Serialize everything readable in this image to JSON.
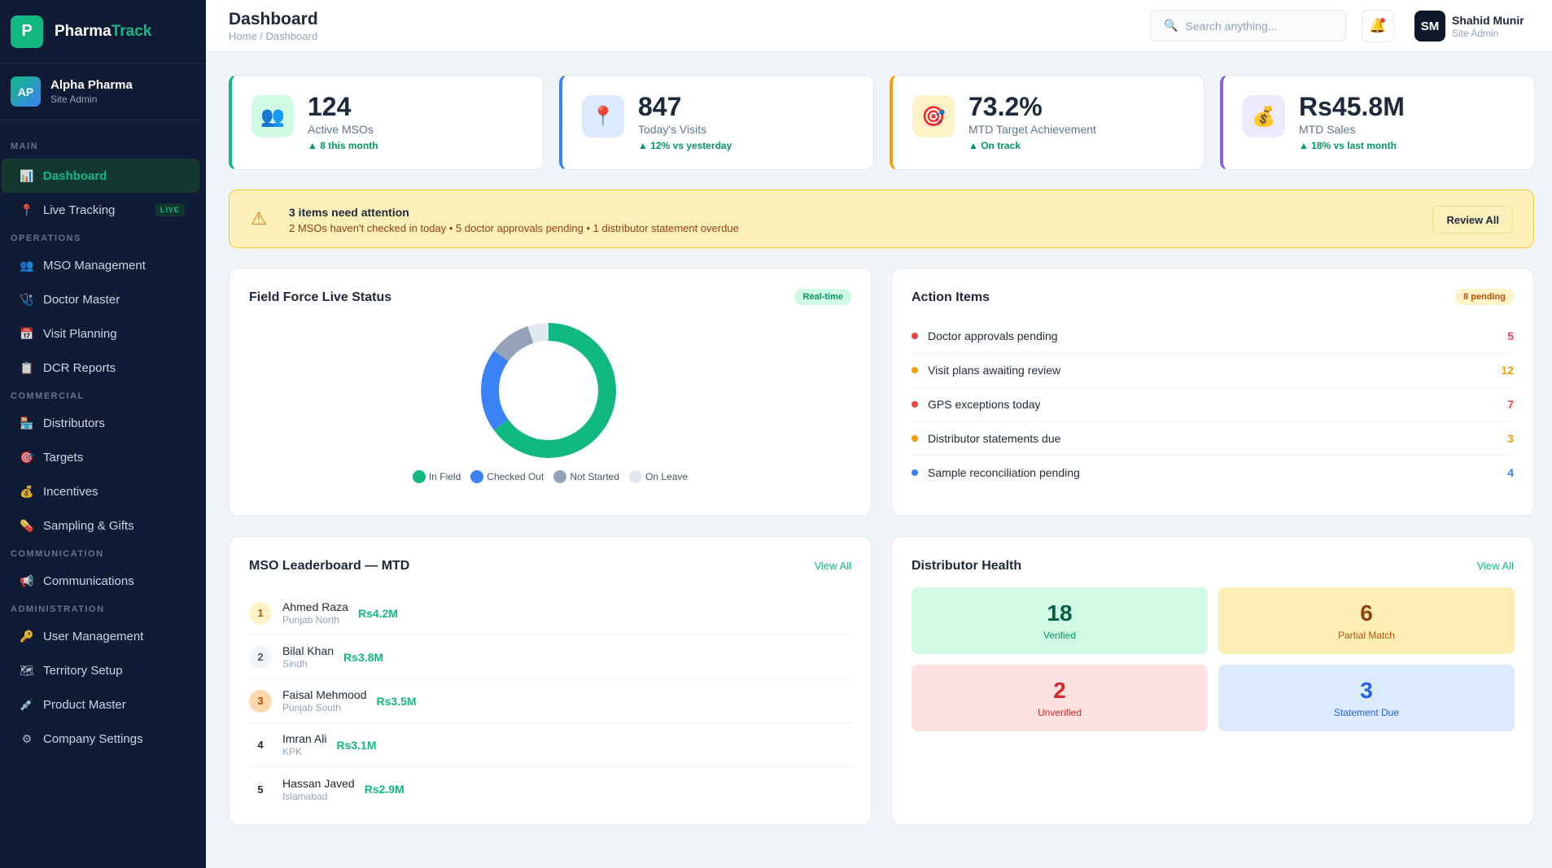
{
  "brand": {
    "logo_letter": "P",
    "name_main": "Pharma",
    "name_accent": "Track"
  },
  "org": {
    "initials": "AP",
    "name": "Alpha Pharma",
    "role": "Site Admin"
  },
  "sidebar": {
    "sections": {
      "main": "MAIN",
      "operations": "OPERATIONS",
      "commercial": "COMMERCIAL",
      "communication": "COMMUNICATION",
      "administration": "ADMINISTRATION"
    },
    "items": {
      "dashboard": "Dashboard",
      "live_tracking": "Live Tracking",
      "live_badge": "LIVE",
      "mso_management": "MSO Management",
      "doctor_master": "Doctor Master",
      "visit_planning": "Visit Planning",
      "dcr_reports": "DCR Reports",
      "distributors": "Distributors",
      "targets": "Targets",
      "incentives": "Incentives",
      "sampling_gifts": "Sampling & Gifts",
      "communications": "Communications",
      "user_management": "User Management",
      "territory_setup": "Territory Setup",
      "product_master": "Product Master",
      "company_settings": "Company Settings"
    }
  },
  "header": {
    "title": "Dashboard",
    "breadcrumb": "Home / Dashboard",
    "search_placeholder": "Search anything...",
    "user": {
      "initials": "SM",
      "name": "Shahid Munir",
      "role": "Site Admin"
    }
  },
  "stats": [
    {
      "value": "124",
      "label": "Active MSOs",
      "trend": "▲ 8 this month",
      "icon": "users-icon",
      "accent": "#10b981"
    },
    {
      "value": "847",
      "label": "Today's Visits",
      "trend": "▲ 12% vs yesterday",
      "icon": "pin-icon",
      "accent": "#3b82f6"
    },
    {
      "value": "73.2%",
      "label": "MTD Target Achievement",
      "trend": "▲ On track",
      "icon": "target-icon",
      "accent": "#f59e0b"
    },
    {
      "value": "Rs45.8M",
      "label": "MTD Sales",
      "trend": "▲ 18% vs last month",
      "icon": "money-bag-icon",
      "accent": "#8b5cf6"
    }
  ],
  "alert": {
    "title": "3 items need attention",
    "description": "2 MSOs haven't checked in today • 5 doctor approvals pending • 1 distributor statement overdue",
    "button": "Review All"
  },
  "field_force": {
    "title": "Field Force Live Status",
    "badge": "Real-time",
    "chart_data": {
      "type": "pie",
      "categories": [
        "In Field",
        "Checked Out",
        "Not Started",
        "On Leave"
      ],
      "values": [
        0.65,
        0.2,
        0.1,
        0.05
      ],
      "colors": [
        "#10b981",
        "#3b82f6",
        "#94a3b8",
        "#e2e8f0"
      ]
    }
  },
  "action_items": {
    "title": "Action Items",
    "badge": "8 pending",
    "items": [
      {
        "label": "Doctor approvals pending",
        "count": "5",
        "color": "#ef4444"
      },
      {
        "label": "Visit plans awaiting review",
        "count": "12",
        "color": "#f59e0b"
      },
      {
        "label": "GPS exceptions today",
        "count": "7",
        "color": "#ef4444"
      },
      {
        "label": "Distributor statements due",
        "count": "3",
        "color": "#f59e0b"
      },
      {
        "label": "Sample reconciliation pending",
        "count": "4",
        "color": "#3b82f6"
      }
    ]
  },
  "leaderboard": {
    "title": "MSO Leaderboard — MTD",
    "view_all": "View All",
    "rows": [
      {
        "rank": "1",
        "name": "Ahmed Raza",
        "region": "Punjab North",
        "amount": "Rs4.2M"
      },
      {
        "rank": "2",
        "name": "Bilal Khan",
        "region": "Sindh",
        "amount": "Rs3.8M"
      },
      {
        "rank": "3",
        "name": "Faisal Mehmood",
        "region": "Punjab South",
        "amount": "Rs3.5M"
      },
      {
        "rank": "4",
        "name": "Imran Ali",
        "region": "KPK",
        "amount": "Rs3.1M"
      },
      {
        "rank": "5",
        "name": "Hassan Javed",
        "region": "Islamabad",
        "amount": "Rs2.9M"
      }
    ]
  },
  "distributor_health": {
    "title": "Distributor Health",
    "view_all": "View All",
    "tiles": [
      {
        "value": "18",
        "label": "Verified"
      },
      {
        "value": "6",
        "label": "Partial Match"
      },
      {
        "value": "2",
        "label": "Unverified"
      },
      {
        "value": "3",
        "label": "Statement Due"
      }
    ]
  }
}
